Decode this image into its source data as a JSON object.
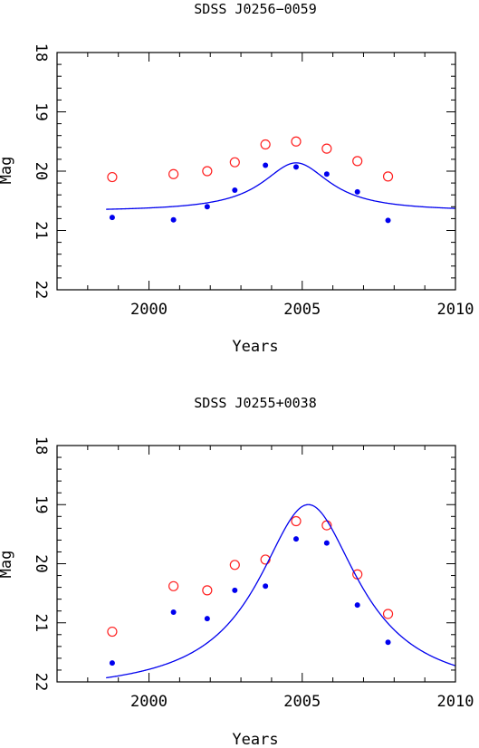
{
  "chart_data": [
    {
      "type": "scatter",
      "title": "SDSS J0256−0059",
      "xlabel": "Years",
      "ylabel": "Mag",
      "xlim": [
        1997,
        2010
      ],
      "ylim": [
        22,
        18
      ],
      "y_inverted": true,
      "xticks": [
        2000,
        2005,
        2010
      ],
      "yticks": [
        18,
        19,
        20,
        21,
        22
      ],
      "grid": false,
      "series": [
        {
          "marker": "open-circle",
          "color": "#ff2020",
          "points": [
            [
              1998.8,
              20.1
            ],
            [
              2000.8,
              20.05
            ],
            [
              2001.9,
              20.0
            ],
            [
              2002.8,
              19.85
            ],
            [
              2003.8,
              19.55
            ],
            [
              2004.8,
              19.5
            ],
            [
              2005.8,
              19.62
            ],
            [
              2006.8,
              19.83
            ],
            [
              2007.8,
              20.09
            ]
          ]
        },
        {
          "marker": "filled-dot",
          "color": "#0000ee",
          "points": [
            [
              1998.8,
              20.78
            ],
            [
              2000.8,
              20.82
            ],
            [
              2001.9,
              20.6
            ],
            [
              2002.8,
              20.32
            ],
            [
              2003.8,
              19.9
            ],
            [
              2004.8,
              19.93
            ],
            [
              2005.8,
              20.05
            ],
            [
              2006.8,
              20.35
            ],
            [
              2007.8,
              20.83
            ]
          ]
        },
        {
          "marker": "line",
          "color": "#0000ee",
          "model": {
            "kind": "lorentzian",
            "baseline": 20.68,
            "amplitude": 0.82,
            "peak_x": 2004.8,
            "width": 1.35
          },
          "x_range": [
            1998.6,
            2010
          ]
        }
      ]
    },
    {
      "type": "scatter",
      "title": "SDSS J0255+0038",
      "xlabel": "Years",
      "ylabel": "Mag",
      "xlim": [
        1997,
        2010
      ],
      "ylim": [
        22,
        18
      ],
      "y_inverted": true,
      "xticks": [
        2000,
        2005,
        2010
      ],
      "yticks": [
        18,
        19,
        20,
        21,
        22
      ],
      "grid": false,
      "series": [
        {
          "marker": "open-circle",
          "color": "#ff2020",
          "points": [
            [
              1998.8,
              21.15
            ],
            [
              2000.8,
              20.38
            ],
            [
              2001.9,
              20.45
            ],
            [
              2002.8,
              20.02
            ],
            [
              2003.8,
              19.93
            ],
            [
              2004.8,
              19.28
            ],
            [
              2005.8,
              19.35
            ],
            [
              2006.8,
              20.18
            ],
            [
              2007.8,
              20.85
            ]
          ]
        },
        {
          "marker": "filled-dot",
          "color": "#0000ee",
          "points": [
            [
              1998.8,
              21.68
            ],
            [
              2000.8,
              20.82
            ],
            [
              2001.9,
              20.93
            ],
            [
              2002.8,
              20.45
            ],
            [
              2003.8,
              20.38
            ],
            [
              2004.8,
              19.58
            ],
            [
              2005.8,
              19.65
            ],
            [
              2006.8,
              20.7
            ],
            [
              2007.8,
              21.33
            ]
          ]
        },
        {
          "marker": "line",
          "color": "#0000ee",
          "model": {
            "kind": "lorentzian",
            "baseline": 22.2,
            "amplitude": 3.2,
            "peak_x": 2005.2,
            "width": 2.0
          },
          "x_range": [
            1998.6,
            2010
          ]
        }
      ]
    }
  ]
}
